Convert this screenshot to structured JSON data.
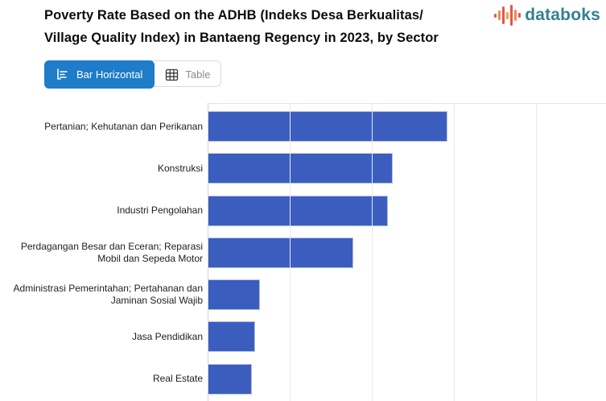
{
  "header": {
    "title_lines": [
      "Poverty Rate Based on the ADHB (Indeks Desa Berkualitas/",
      "Village Quality Index) in Bantaeng Regency in 2023, by Sector"
    ],
    "logo": {
      "text": "databoks",
      "text_color": "#35818f",
      "icon_bar_colors": [
        "#e2574c",
        "#ee8a4e",
        "#e2574c",
        "#f0a04f",
        "#e2574c",
        "#ee8a4e",
        "#e2574c"
      ],
      "icon_bar_heights": [
        5,
        12,
        22,
        9,
        26,
        14,
        6
      ]
    }
  },
  "toolbar": {
    "bar_horizontal_label": "Bar Horizontal",
    "table_label": "Table",
    "active_view": "Bar Horizontal",
    "active_bg": "#1e7cc8"
  },
  "chart_data": {
    "type": "bar",
    "orientation": "horizontal",
    "title": "Poverty Rate Based on the ADHB (Indeks Desa Berkualitas/Village Quality Index) in Bantaeng Regency in 2023, by Sector",
    "categories": [
      "Pertanian; Kehutanan dan Perikanan",
      "Konstruksi",
      "Industri Pengolahan",
      "Perdagangan Besar dan Eceran; Reparasi Mobil dan Sepeda Motor",
      "Administrasi Pemerintahan; Pertahanan dan Jaminan Sosial Wajib",
      "Jasa Pendidikan",
      "Real Estate"
    ],
    "values": [
      29.2,
      22.5,
      22.0,
      17.7,
      6.4,
      5.8,
      5.4
    ],
    "unit": "%",
    "xlabel": "",
    "ylabel": "",
    "xlim": [
      0,
      48.5
    ],
    "gridline_values": [
      10,
      20,
      30,
      40
    ],
    "grid": "vertical gridlines only, x-axis tick labels cropped out of view",
    "legend": "none",
    "bar_color": "#3b5ebe"
  }
}
